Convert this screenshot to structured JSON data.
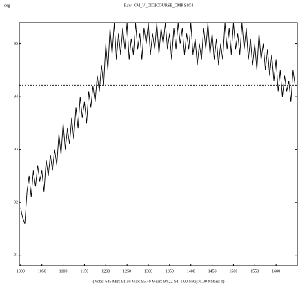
{
  "chart_data": {
    "type": "line",
    "title": "Raw: CM_V_DIGICOURSE_CMP S1C4",
    "y_label": "deg",
    "annotation": "(Nobs: 645 Min: 91.50 Max: 95.40 Mean: 94.22 Sd: 1.00 NRej: 0.00 NMiss: 0)",
    "mean_line": 94.22,
    "xlim": [
      997,
      1650
    ],
    "ylim": [
      90.8,
      95.4
    ],
    "xticks": [
      1000,
      1050,
      1100,
      1150,
      1200,
      1250,
      1300,
      1350,
      1400,
      1450,
      1500,
      1550,
      1600
    ],
    "yticks": [
      91,
      92,
      93,
      94,
      95
    ],
    "series": [
      {
        "color": "#000000",
        "x": [
          1000,
          1005,
          1010,
          1015,
          1020,
          1025,
          1030,
          1035,
          1040,
          1045,
          1050,
          1055,
          1060,
          1065,
          1070,
          1075,
          1080,
          1085,
          1090,
          1095,
          1100,
          1105,
          1110,
          1115,
          1120,
          1125,
          1130,
          1135,
          1140,
          1145,
          1150,
          1155,
          1160,
          1165,
          1170,
          1175,
          1180,
          1185,
          1190,
          1195,
          1200,
          1205,
          1210,
          1215,
          1220,
          1225,
          1230,
          1235,
          1240,
          1245,
          1250,
          1255,
          1260,
          1265,
          1270,
          1275,
          1280,
          1285,
          1290,
          1295,
          1300,
          1305,
          1310,
          1315,
          1320,
          1325,
          1330,
          1335,
          1340,
          1345,
          1350,
          1355,
          1360,
          1365,
          1370,
          1375,
          1380,
          1385,
          1390,
          1395,
          1400,
          1405,
          1410,
          1415,
          1420,
          1425,
          1430,
          1435,
          1440,
          1445,
          1450,
          1455,
          1460,
          1465,
          1470,
          1475,
          1480,
          1485,
          1490,
          1495,
          1500,
          1505,
          1510,
          1515,
          1520,
          1525,
          1530,
          1535,
          1540,
          1545,
          1550,
          1555,
          1560,
          1565,
          1570,
          1575,
          1580,
          1585,
          1590,
          1595,
          1600,
          1605,
          1610,
          1615,
          1620,
          1625,
          1630,
          1635,
          1640,
          1645
        ],
        "values": [
          91.9,
          91.7,
          91.6,
          92.2,
          92.5,
          92.1,
          92.6,
          92.3,
          92.7,
          92.4,
          92.6,
          92.2,
          92.8,
          92.5,
          92.9,
          92.6,
          93.0,
          92.7,
          93.3,
          92.9,
          93.5,
          93.0,
          93.4,
          93.1,
          93.6,
          93.2,
          93.8,
          93.4,
          94.0,
          93.6,
          93.9,
          93.5,
          94.1,
          93.8,
          94.2,
          93.9,
          94.4,
          94.1,
          94.6,
          94.2,
          95.0,
          94.5,
          95.3,
          94.8,
          95.4,
          94.7,
          95.2,
          94.8,
          95.3,
          94.9,
          95.4,
          94.7,
          95.1,
          94.8,
          95.4,
          94.9,
          95.2,
          94.7,
          95.3,
          95.0,
          95.4,
          94.8,
          95.2,
          94.9,
          95.4,
          94.8,
          95.3,
          95.0,
          95.4,
          94.9,
          95.2,
          94.7,
          95.3,
          94.9,
          95.4,
          95.0,
          95.3,
          94.8,
          95.2,
          94.9,
          95.4,
          94.8,
          95.1,
          94.6,
          95.0,
          94.7,
          95.3,
          94.9,
          95.4,
          94.8,
          95.2,
          94.7,
          95.1,
          94.6,
          95.0,
          94.7,
          95.4,
          94.9,
          95.3,
          94.8,
          95.4,
          94.9,
          95.2,
          94.8,
          95.4,
          94.9,
          95.3,
          94.7,
          95.1,
          94.6,
          95.0,
          94.5,
          95.2,
          94.7,
          95.0,
          94.5,
          94.9,
          94.4,
          94.8,
          94.3,
          94.7,
          94.1,
          94.5,
          94.0,
          94.4,
          94.1,
          94.3,
          93.9,
          94.5,
          94.2
        ]
      }
    ]
  }
}
